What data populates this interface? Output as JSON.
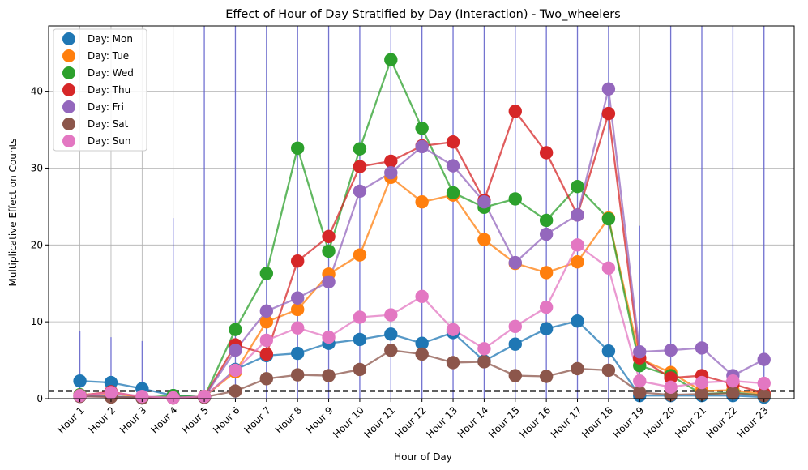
{
  "chart_data": {
    "type": "line",
    "title": "Effect of Hour of Day Stratified by Day (Interaction) - Two_wheelers",
    "xlabel": "Hour of Day",
    "ylabel": "Multiplicative Effect on Counts",
    "categories": [
      "Hour 1",
      "Hour 2",
      "Hour 3",
      "Hour 4",
      "Hour 5",
      "Hour 6",
      "Hour 7",
      "Hour 8",
      "Hour 9",
      "Hour 10",
      "Hour 11",
      "Hour 12",
      "Hour 13",
      "Hour 14",
      "Hour 15",
      "Hour 16",
      "Hour 17",
      "Hour 18",
      "Hour 19",
      "Hour 20",
      "Hour 21",
      "Hour 22",
      "Hour 23"
    ],
    "ylim": [
      0,
      48.5
    ],
    "yticks": [
      0,
      10,
      20,
      30,
      40
    ],
    "grid": true,
    "legend_position": "top-left",
    "reference_line": {
      "y": 1,
      "style": "dashed",
      "color": "#000000"
    },
    "series": [
      {
        "name": "Day: Mon",
        "color": "#1f77b4",
        "values": [
          2.3,
          2.1,
          1.3,
          0.4,
          0.2,
          3.8,
          5.6,
          5.9,
          7.2,
          7.7,
          8.4,
          7.2,
          8.6,
          4.9,
          7.1,
          9.1,
          10.1,
          6.2,
          0.4,
          0.4,
          0.4,
          0.4,
          0.2
        ]
      },
      {
        "name": "Day: Tue",
        "color": "#ff7f0e",
        "values": [
          0.5,
          0.7,
          0.2,
          0.1,
          0.3,
          3.5,
          10.0,
          11.6,
          16.2,
          18.7,
          28.8,
          25.6,
          26.5,
          20.7,
          17.6,
          16.4,
          17.8,
          23.5,
          5.2,
          3.4,
          1.0,
          1.1,
          0.6
        ]
      },
      {
        "name": "Day: Wed",
        "color": "#2ca02c",
        "values": [
          0.5,
          0.3,
          0.1,
          0.4,
          0.2,
          9.0,
          16.3,
          32.6,
          19.2,
          32.5,
          44.1,
          35.2,
          26.8,
          24.9,
          26.0,
          23.2,
          27.6,
          23.4,
          4.3,
          3.0,
          0.6,
          0.8,
          0.4
        ]
      },
      {
        "name": "Day: Thu",
        "color": "#d62728",
        "values": [
          0.4,
          0.9,
          0.2,
          0.1,
          0.2,
          7.0,
          5.8,
          17.9,
          21.1,
          30.2,
          30.9,
          32.9,
          33.4,
          25.8,
          37.4,
          32.0,
          23.9,
          37.1,
          5.3,
          2.7,
          3.0,
          1.9,
          0.7
        ]
      },
      {
        "name": "Day: Fri",
        "color": "#9467bd",
        "values": [
          0.3,
          0.3,
          0.1,
          0.1,
          0.2,
          6.3,
          11.4,
          13.1,
          15.2,
          27.0,
          29.4,
          32.8,
          30.3,
          25.6,
          17.7,
          21.4,
          23.9,
          40.3,
          6.1,
          6.3,
          6.6,
          3.0,
          5.1
        ]
      },
      {
        "name": "Day: Sat",
        "color": "#8c564b",
        "values": [
          0.3,
          0.2,
          0.1,
          0.1,
          0.2,
          1.0,
          2.6,
          3.1,
          3.0,
          3.8,
          6.3,
          5.8,
          4.7,
          4.8,
          3.0,
          2.9,
          3.9,
          3.7,
          0.8,
          0.5,
          0.6,
          0.7,
          0.4
        ]
      },
      {
        "name": "Day: Sun",
        "color": "#e377c2",
        "values": [
          0.4,
          0.8,
          0.3,
          0.1,
          0.3,
          3.7,
          7.6,
          9.2,
          8.0,
          10.6,
          10.9,
          13.3,
          9.0,
          6.5,
          9.4,
          11.9,
          20.0,
          17.0,
          2.3,
          1.5,
          2.1,
          2.3,
          2.0
        ]
      }
    ]
  }
}
